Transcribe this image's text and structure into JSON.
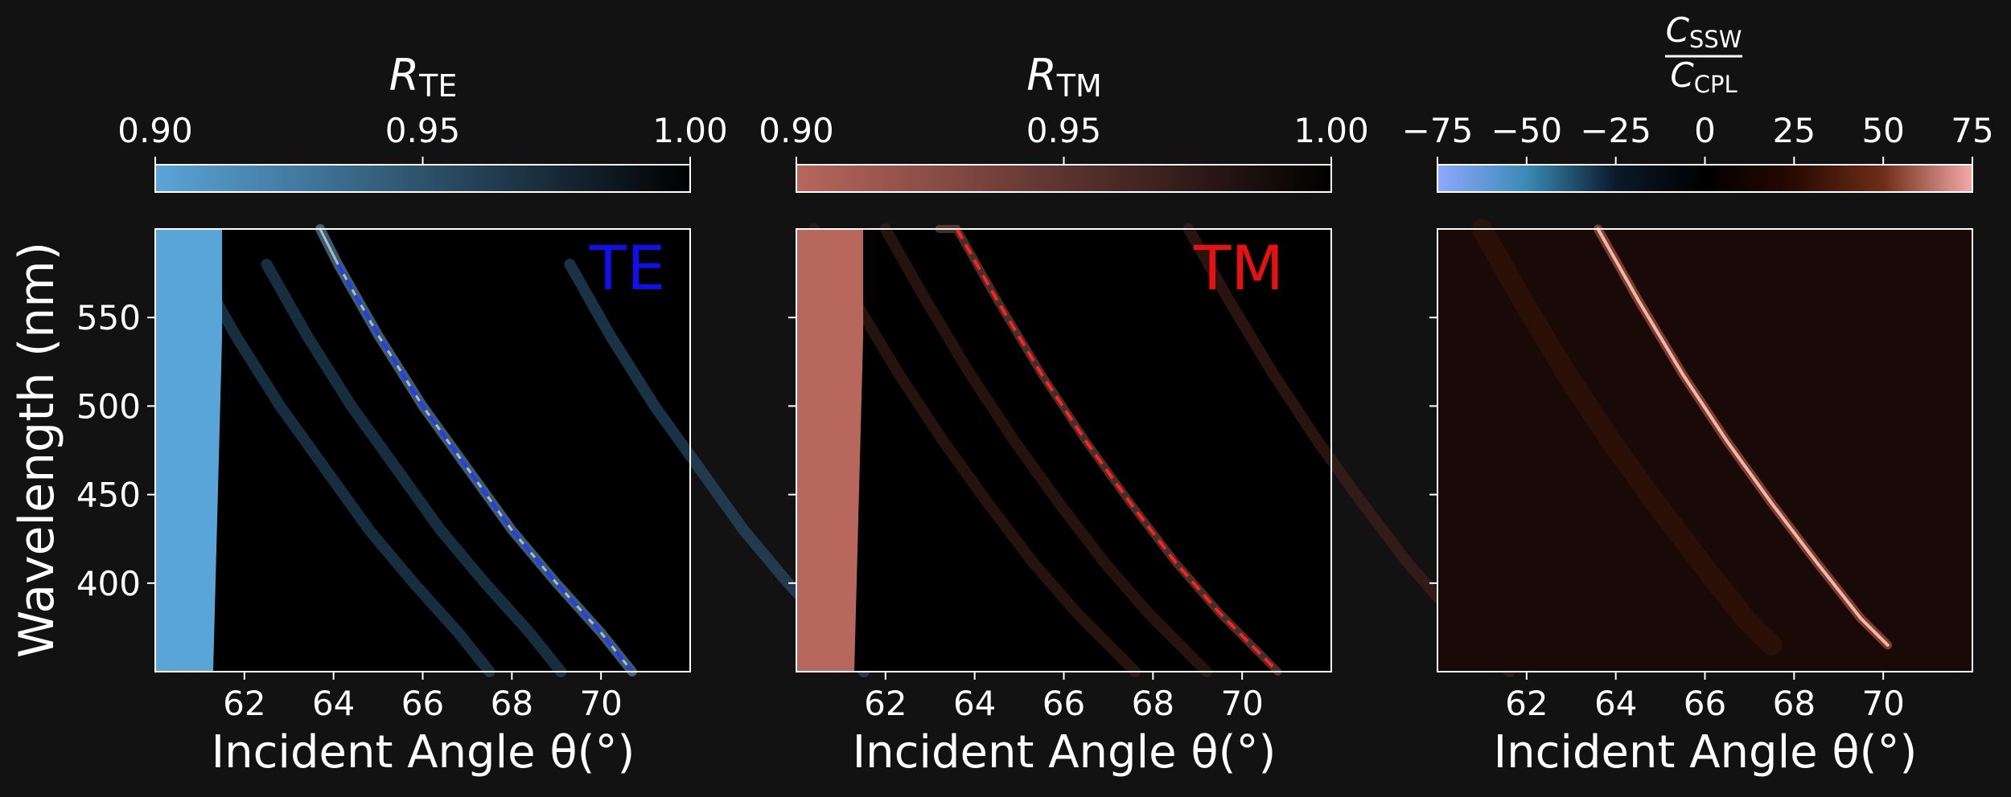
{
  "colors": {
    "background": "#121212",
    "te_colormap": [
      "#5aa5d8",
      "#000000"
    ],
    "tm_colormap": [
      "#b8675c",
      "#000000"
    ],
    "ratio_colormap": [
      "#8fa8ff",
      "#3a8ab5",
      "#0a1a2a",
      "#000000",
      "#2a0a00",
      "#6e2d18",
      "#f5aaa8"
    ],
    "te_curve": "#1f3cff",
    "tm_curve": "#ff2020",
    "te_label": "#1010e8",
    "tm_label": "#e81010"
  },
  "chart_data": [
    {
      "type": "heatmap",
      "panel": "te",
      "annotation": "TE",
      "colorbar": {
        "label_main": "R",
        "label_sub": "TE",
        "range": [
          0.9,
          1.0
        ],
        "ticks": [
          "0.90",
          "0.95",
          "1.00"
        ],
        "tick_values": [
          0.9,
          0.95,
          1.0
        ]
      },
      "xlabel": "Incident Angle θ(°)",
      "ylabel": "Wavelength (nm)",
      "xlim": [
        60.0,
        72.0
      ],
      "ylim": [
        350,
        600
      ],
      "xticks": [
        "62",
        "64",
        "66",
        "68",
        "70"
      ],
      "xtick_values": [
        62,
        64,
        66,
        68,
        70
      ],
      "yticks": [
        "400",
        "450",
        "500",
        "550"
      ],
      "ytick_values": [
        400,
        450,
        500,
        550
      ],
      "total_reflection_edge": [
        {
          "x": 61.3,
          "y": 350
        },
        {
          "x": 61.5,
          "y": 540
        },
        {
          "x": 61.5,
          "y": 600
        }
      ],
      "dashed_curve": [
        {
          "x": 64.1,
          "y": 580
        },
        {
          "x": 65.0,
          "y": 540
        },
        {
          "x": 66.0,
          "y": 500
        },
        {
          "x": 67.0,
          "y": 465
        },
        {
          "x": 68.0,
          "y": 430
        },
        {
          "x": 69.0,
          "y": 400
        },
        {
          "x": 70.0,
          "y": 372
        },
        {
          "x": 70.7,
          "y": 350
        }
      ]
    },
    {
      "type": "heatmap",
      "panel": "tm",
      "annotation": "TM",
      "colorbar": {
        "label_main": "R",
        "label_sub": "TM",
        "range": [
          0.9,
          1.0
        ],
        "ticks": [
          "0.90",
          "0.95",
          "1.00"
        ],
        "tick_values": [
          0.9,
          0.95,
          1.0
        ]
      },
      "xlabel": "Incident Angle θ(°)",
      "xlim": [
        60.0,
        72.0
      ],
      "ylim": [
        350,
        600
      ],
      "xticks": [
        "62",
        "64",
        "66",
        "68",
        "70"
      ],
      "xtick_values": [
        62,
        64,
        66,
        68,
        70
      ],
      "total_reflection_edge": [
        {
          "x": 61.3,
          "y": 350
        },
        {
          "x": 61.5,
          "y": 540
        },
        {
          "x": 61.5,
          "y": 600
        }
      ],
      "dashed_curve": [
        {
          "x": 63.6,
          "y": 600
        },
        {
          "x": 64.5,
          "y": 560
        },
        {
          "x": 65.5,
          "y": 518
        },
        {
          "x": 66.5,
          "y": 480
        },
        {
          "x": 67.5,
          "y": 445
        },
        {
          "x": 68.5,
          "y": 412
        },
        {
          "x": 69.5,
          "y": 383
        },
        {
          "x": 70.8,
          "y": 350
        }
      ]
    },
    {
      "type": "heatmap",
      "panel": "ratio",
      "colorbar": {
        "label_num": "C",
        "label_num_sub": "SSW",
        "label_den": "C",
        "label_den_sub": "CPL",
        "range": [
          -75,
          75
        ],
        "ticks": [
          "−75",
          "−50",
          "−25",
          "0",
          "25",
          "50",
          "75"
        ],
        "tick_values": [
          -75,
          -50,
          -25,
          0,
          25,
          50,
          75
        ]
      },
      "xlabel": "Incident Angle θ(°)",
      "xlim": [
        60.0,
        72.0
      ],
      "ylim": [
        350,
        600
      ],
      "xticks": [
        "62",
        "64",
        "66",
        "68",
        "70"
      ],
      "xtick_values": [
        62,
        64,
        66,
        68,
        70
      ],
      "bright_curve": [
        {
          "x": 63.6,
          "y": 600
        },
        {
          "x": 64.5,
          "y": 560
        },
        {
          "x": 65.5,
          "y": 518
        },
        {
          "x": 66.5,
          "y": 480
        },
        {
          "x": 67.5,
          "y": 445
        },
        {
          "x": 68.5,
          "y": 412
        },
        {
          "x": 69.5,
          "y": 380
        },
        {
          "x": 70.1,
          "y": 365
        }
      ]
    }
  ]
}
